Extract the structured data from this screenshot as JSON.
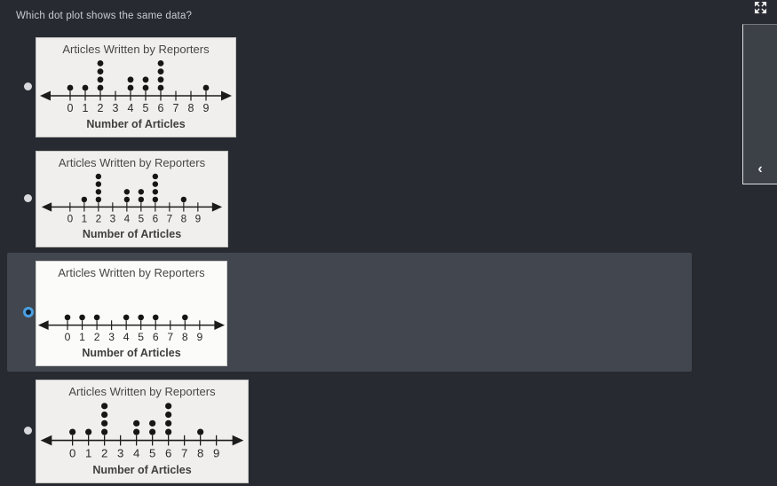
{
  "page": {
    "question": "Which dot plot shows the same data?",
    "colors": {
      "background": "#272a31",
      "highlight": "#42464e",
      "accent": "#4aa0e2",
      "plot_bg": "#f1efed",
      "plot_bg_selected": "#fbfbfa",
      "dot": "#161616",
      "axis": "#1c1c1c"
    }
  },
  "controls": {
    "fullscreen_icon": "expand-arrows-icon",
    "collapse_icon": "‹"
  },
  "options": [
    {
      "selected": false
    },
    {
      "selected": false
    },
    {
      "selected": true
    },
    {
      "selected": false
    }
  ],
  "chart_data": [
    {
      "type": "dot_plot",
      "title": "Articles Written by Reporters",
      "xlabel": "Number of Articles",
      "x": [
        0,
        1,
        2,
        3,
        4,
        5,
        6,
        7,
        8,
        9
      ],
      "counts": [
        1,
        1,
        4,
        0,
        2,
        2,
        4,
        0,
        0,
        1
      ],
      "xlim": [
        0,
        9
      ],
      "grid": false
    },
    {
      "type": "dot_plot",
      "title": "Articles Written by Reporters",
      "xlabel": "Number of Articles",
      "x": [
        0,
        1,
        2,
        3,
        4,
        5,
        6,
        7,
        8,
        9
      ],
      "counts": [
        0,
        1,
        4,
        0,
        2,
        2,
        4,
        0,
        1,
        0
      ],
      "xlim": [
        0,
        9
      ],
      "grid": false
    },
    {
      "type": "dot_plot",
      "title": "Articles Written by Reporters",
      "xlabel": "Number of Articles",
      "x": [
        0,
        1,
        2,
        3,
        4,
        5,
        6,
        7,
        8,
        9
      ],
      "counts": [
        1,
        1,
        1,
        0,
        1,
        1,
        1,
        0,
        1,
        0
      ],
      "xlim": [
        0,
        9
      ],
      "grid": false
    },
    {
      "type": "dot_plot",
      "title": "Articles Written by Reporters",
      "xlabel": "Number of Articles",
      "x": [
        0,
        1,
        2,
        3,
        4,
        5,
        6,
        7,
        8,
        9
      ],
      "counts": [
        1,
        1,
        4,
        0,
        2,
        2,
        4,
        0,
        1,
        0
      ],
      "xlim": [
        0,
        9
      ],
      "grid": false
    }
  ]
}
